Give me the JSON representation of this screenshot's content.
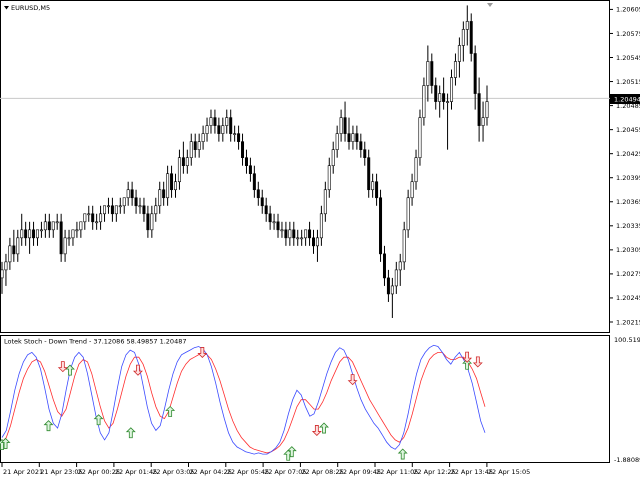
{
  "main_chart": {
    "symbol_label": "EURUSD,M5",
    "collapse_arrow": "triangle-down-icon",
    "current_price_label": "1.20494",
    "price_ticks": [
      "1.20605",
      "1.20575",
      "1.20545",
      "1.20515",
      "1.20485",
      "1.20455",
      "1.20425",
      "1.20395",
      "1.20365",
      "1.20335",
      "1.20305",
      "1.20275",
      "1.20245",
      "1.20215"
    ],
    "price_range": [
      1.20205,
      1.20613
    ],
    "candles": [
      [
        1.2027,
        1.2029,
        1.2025,
        1.2028
      ],
      [
        1.2028,
        1.203,
        1.2026,
        1.2029
      ],
      [
        1.2029,
        1.2032,
        1.2028,
        1.2031
      ],
      [
        1.2031,
        1.2033,
        1.2029,
        1.203
      ],
      [
        1.203,
        1.2033,
        1.2029,
        1.2032
      ],
      [
        1.2032,
        1.2035,
        1.2031,
        1.2033
      ],
      [
        1.2033,
        1.2034,
        1.2031,
        1.2032
      ],
      [
        1.2032,
        1.2034,
        1.203,
        1.2033
      ],
      [
        1.2033,
        1.2034,
        1.2031,
        1.2032
      ],
      [
        1.2032,
        1.2033,
        1.2031,
        1.2033
      ],
      [
        1.2033,
        1.2034,
        1.2032,
        1.2033
      ],
      [
        1.2033,
        1.2035,
        1.2032,
        1.2034
      ],
      [
        1.2034,
        1.2035,
        1.2032,
        1.2033
      ],
      [
        1.2033,
        1.2034,
        1.2032,
        1.2034
      ],
      [
        1.2034,
        1.2035,
        1.2033,
        1.2034
      ],
      [
        1.2034,
        1.2035,
        1.2029,
        1.203
      ],
      [
        1.203,
        1.2033,
        1.2029,
        1.2032
      ],
      [
        1.2032,
        1.2033,
        1.2031,
        1.2032
      ],
      [
        1.2032,
        1.2033,
        1.2031,
        1.2033
      ],
      [
        1.2033,
        1.2034,
        1.2032,
        1.2033
      ],
      [
        1.2033,
        1.2034,
        1.2032,
        1.2034
      ],
      [
        1.2034,
        1.2035,
        1.2033,
        1.2035
      ],
      [
        1.2035,
        1.2036,
        1.2034,
        1.2035
      ],
      [
        1.2035,
        1.2036,
        1.2033,
        1.2034
      ],
      [
        1.2034,
        1.2035,
        1.2033,
        1.2034
      ],
      [
        1.2034,
        1.2036,
        1.2033,
        1.2035
      ],
      [
        1.2035,
        1.2036,
        1.2034,
        1.2036
      ],
      [
        1.2036,
        1.2037,
        1.2035,
        1.2036
      ],
      [
        1.2036,
        1.2037,
        1.2034,
        1.2035
      ],
      [
        1.2035,
        1.2036,
        1.2034,
        1.2036
      ],
      [
        1.2036,
        1.2037,
        1.2035,
        1.2036
      ],
      [
        1.2036,
        1.2037,
        1.2035,
        1.2037
      ],
      [
        1.2037,
        1.2039,
        1.2036,
        1.2038
      ],
      [
        1.2038,
        1.2039,
        1.2036,
        1.2037
      ],
      [
        1.2037,
        1.2038,
        1.2035,
        1.2036
      ],
      [
        1.2036,
        1.2037,
        1.2035,
        1.2036
      ],
      [
        1.2036,
        1.2037,
        1.2034,
        1.2035
      ],
      [
        1.2035,
        1.2036,
        1.2032,
        1.2033
      ],
      [
        1.2033,
        1.2036,
        1.2032,
        1.2035
      ],
      [
        1.2035,
        1.2037,
        1.2034,
        1.2036
      ],
      [
        1.2036,
        1.2039,
        1.2035,
        1.2038
      ],
      [
        1.2038,
        1.2039,
        1.2036,
        1.2037
      ],
      [
        1.2037,
        1.2041,
        1.2036,
        1.204
      ],
      [
        1.204,
        1.2041,
        1.2037,
        1.2038
      ],
      [
        1.2038,
        1.204,
        1.2037,
        1.2039
      ],
      [
        1.2039,
        1.2043,
        1.2038,
        1.2042
      ],
      [
        1.2042,
        1.2044,
        1.204,
        1.2041
      ],
      [
        1.2041,
        1.2043,
        1.204,
        1.2042
      ],
      [
        1.2042,
        1.2045,
        1.2041,
        1.2044
      ],
      [
        1.2044,
        1.2045,
        1.2042,
        1.2043
      ],
      [
        1.2043,
        1.2045,
        1.2042,
        1.2044
      ],
      [
        1.2044,
        1.2046,
        1.2043,
        1.2045
      ],
      [
        1.2045,
        1.2047,
        1.2044,
        1.2046
      ],
      [
        1.2046,
        1.2048,
        1.2045,
        1.2047
      ],
      [
        1.2047,
        1.2048,
        1.2045,
        1.2046
      ],
      [
        1.2046,
        1.2047,
        1.2044,
        1.2045
      ],
      [
        1.2045,
        1.2047,
        1.2044,
        1.2046
      ],
      [
        1.2046,
        1.2048,
        1.2045,
        1.2047
      ],
      [
        1.2047,
        1.2048,
        1.2044,
        1.2045
      ],
      [
        1.2045,
        1.2046,
        1.2044,
        1.2045
      ],
      [
        1.2045,
        1.2046,
        1.2043,
        1.2044
      ],
      [
        1.2044,
        1.2045,
        1.2041,
        1.2042
      ],
      [
        1.2042,
        1.2043,
        1.204,
        1.2041
      ],
      [
        1.2041,
        1.2042,
        1.2039,
        1.204
      ],
      [
        1.204,
        1.2041,
        1.2037,
        1.2038
      ],
      [
        1.2038,
        1.2039,
        1.2036,
        1.2037
      ],
      [
        1.2037,
        1.2038,
        1.2035,
        1.2036
      ],
      [
        1.2036,
        1.2037,
        1.2034,
        1.2035
      ],
      [
        1.2035,
        1.2036,
        1.2033,
        1.2034
      ],
      [
        1.2034,
        1.2035,
        1.2033,
        1.2034
      ],
      [
        1.2034,
        1.2035,
        1.2032,
        1.2033
      ],
      [
        1.2033,
        1.2034,
        1.2032,
        1.2033
      ],
      [
        1.2033,
        1.2034,
        1.2031,
        1.2032
      ],
      [
        1.2032,
        1.2034,
        1.2031,
        1.2033
      ],
      [
        1.2033,
        1.2034,
        1.2031,
        1.2032
      ],
      [
        1.2032,
        1.2033,
        1.2031,
        1.2032
      ],
      [
        1.2032,
        1.2033,
        1.2031,
        1.2032
      ],
      [
        1.2032,
        1.2033,
        1.2031,
        1.2033
      ],
      [
        1.2033,
        1.2034,
        1.2031,
        1.2032
      ],
      [
        1.2032,
        1.2033,
        1.203,
        1.2031
      ],
      [
        1.2031,
        1.2033,
        1.2029,
        1.2032
      ],
      [
        1.2032,
        1.2036,
        1.2031,
        1.2035
      ],
      [
        1.2035,
        1.2039,
        1.2034,
        1.2038
      ],
      [
        1.2038,
        1.2042,
        1.2037,
        1.2041
      ],
      [
        1.2041,
        1.2044,
        1.204,
        1.2043
      ],
      [
        1.2043,
        1.2046,
        1.2042,
        1.2045
      ],
      [
        1.2045,
        1.2048,
        1.2044,
        1.2047
      ],
      [
        1.2047,
        1.2049,
        1.2044,
        1.2045
      ],
      [
        1.2045,
        1.2047,
        1.2043,
        1.2044
      ],
      [
        1.2044,
        1.2046,
        1.2043,
        1.2045
      ],
      [
        1.2045,
        1.2046,
        1.2043,
        1.2044
      ],
      [
        1.2044,
        1.2045,
        1.2042,
        1.2043
      ],
      [
        1.2043,
        1.2044,
        1.2041,
        1.2042
      ],
      [
        1.2042,
        1.2043,
        1.2037,
        1.2038
      ],
      [
        1.2038,
        1.204,
        1.2037,
        1.2039
      ],
      [
        1.2039,
        1.204,
        1.2036,
        1.2037
      ],
      [
        1.2037,
        1.2038,
        1.2029,
        1.203
      ],
      [
        1.203,
        1.2031,
        1.2026,
        1.2027
      ],
      [
        1.2027,
        1.2028,
        1.2024,
        1.2025
      ],
      [
        1.2025,
        1.2027,
        1.2022,
        1.2026
      ],
      [
        1.2026,
        1.2029,
        1.2025,
        1.2028
      ],
      [
        1.2028,
        1.203,
        1.2026,
        1.2029
      ],
      [
        1.2029,
        1.2034,
        1.2028,
        1.2033
      ],
      [
        1.2033,
        1.2038,
        1.2032,
        1.2037
      ],
      [
        1.2037,
        1.204,
        1.2036,
        1.2039
      ],
      [
        1.2039,
        1.2043,
        1.2038,
        1.2042
      ],
      [
        1.2042,
        1.2048,
        1.2041,
        1.2047
      ],
      [
        1.2047,
        1.2052,
        1.2046,
        1.2051
      ],
      [
        1.2051,
        1.2056,
        1.2049,
        1.2054
      ],
      [
        1.2054,
        1.2055,
        1.205,
        1.2051
      ],
      [
        1.2051,
        1.2052,
        1.2048,
        1.2049
      ],
      [
        1.2049,
        1.2051,
        1.2047,
        1.205
      ],
      [
        1.205,
        1.2052,
        1.2048,
        1.2049
      ],
      [
        1.2049,
        1.205,
        1.2043,
        1.2049
      ],
      [
        1.2049,
        1.2053,
        1.2048,
        1.2052
      ],
      [
        1.2052,
        1.2055,
        1.2051,
        1.2054
      ],
      [
        1.2054,
        1.2057,
        1.2052,
        1.2056
      ],
      [
        1.2056,
        1.2059,
        1.2054,
        1.2058
      ],
      [
        1.2058,
        1.2061,
        1.2056,
        1.2059
      ],
      [
        1.2059,
        1.206,
        1.2054,
        1.2055
      ],
      [
        1.2055,
        1.2056,
        1.2048,
        1.205
      ],
      [
        1.205,
        1.2052,
        1.2044,
        1.2046
      ],
      [
        1.2046,
        1.2049,
        1.2044,
        1.2047
      ],
      [
        1.2047,
        1.2051,
        1.2046,
        1.2049
      ]
    ]
  },
  "indicator": {
    "title": "Lotek Stoch - Down Trend -  37.12086 58.49857 1.20487",
    "ticks": [
      "100.51999",
      "-1.88089"
    ],
    "range": [
      -1.88089,
      100.51999
    ],
    "main_line": [
      18,
      24,
      40,
      58,
      72,
      82,
      88,
      90,
      86,
      76,
      60,
      42,
      30,
      26,
      38,
      58,
      76,
      86,
      90,
      86,
      72,
      54,
      36,
      22,
      16,
      22,
      40,
      60,
      78,
      88,
      92,
      90,
      80,
      62,
      44,
      30,
      24,
      28,
      42,
      58,
      72,
      82,
      88,
      90,
      92,
      94,
      95,
      93,
      88,
      78,
      64,
      48,
      34,
      22,
      14,
      10,
      8,
      6,
      5,
      4,
      5,
      4,
      4,
      6,
      9,
      14,
      24,
      38,
      50,
      58,
      54,
      44,
      36,
      38,
      48,
      60,
      72,
      82,
      90,
      94,
      92,
      84,
      72,
      60,
      50,
      42,
      36,
      30,
      26,
      20,
      14,
      10,
      8,
      12,
      22,
      38,
      56,
      72,
      84,
      90,
      94,
      96,
      95,
      90,
      84,
      80,
      86,
      90,
      84,
      76,
      64,
      48,
      32,
      22
    ],
    "signal_line": [
      14,
      18,
      28,
      42,
      56,
      68,
      76,
      82,
      84,
      82,
      74,
      62,
      50,
      40,
      36,
      42,
      56,
      70,
      80,
      84,
      82,
      72,
      58,
      44,
      32,
      26,
      30,
      42,
      56,
      70,
      80,
      86,
      86,
      80,
      70,
      56,
      44,
      36,
      34,
      40,
      52,
      64,
      74,
      80,
      84,
      86,
      88,
      89,
      88,
      84,
      76,
      66,
      54,
      42,
      32,
      24,
      18,
      14,
      10,
      8,
      7,
      6,
      5,
      6,
      8,
      11,
      16,
      24,
      34,
      44,
      50,
      50,
      46,
      42,
      42,
      48,
      56,
      66,
      74,
      82,
      86,
      86,
      82,
      74,
      66,
      58,
      50,
      44,
      38,
      32,
      26,
      20,
      16,
      14,
      18,
      26,
      38,
      52,
      66,
      76,
      84,
      88,
      90,
      90,
      86,
      84,
      84,
      86,
      86,
      82,
      76,
      68,
      56,
      44
    ]
  },
  "signals": {
    "up": [
      [
        0,
        12
      ],
      [
        13,
        28
      ],
      [
        27,
        33
      ],
      [
        36,
        22
      ],
      [
        47,
        40
      ],
      [
        80,
        3
      ],
      [
        81,
        6
      ],
      [
        90,
        26
      ],
      [
        112,
        4
      ],
      [
        130,
        80
      ],
      [
        1,
        13
      ],
      [
        19,
        75
      ]
    ],
    "down": [
      [
        17,
        78
      ],
      [
        38,
        75
      ],
      [
        56,
        90
      ],
      [
        88,
        24
      ],
      [
        98,
        67
      ],
      [
        130,
        86
      ],
      [
        133,
        82
      ]
    ]
  },
  "time_ticks": [
    "21 Apr 2021",
    "21 Apr 23:05",
    "22 Apr 00:25",
    "22 Apr 01:45",
    "22 Apr 03:05",
    "22 Apr 04:25",
    "22 Apr 05:45",
    "22 Apr 07:05",
    "22 Apr 08:25",
    "22 Apr 09:45",
    "22 Apr 11:05",
    "22 Apr 12:25",
    "22 Apr 13:45",
    "22 Apr 15:05"
  ],
  "colors": {
    "main_line": "#3b4bff",
    "signal_line": "#ff2e2e",
    "arrow_up_fill": "#dff5df",
    "arrow_up_stroke": "#2f8a2f",
    "arrow_down_fill": "#ffe0e0",
    "arrow_down_stroke": "#d02a2a",
    "price_line": "#c8c8c8"
  }
}
